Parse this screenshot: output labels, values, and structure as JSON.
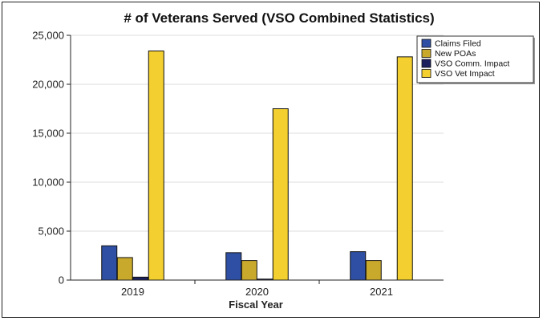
{
  "chart_data": {
    "type": "bar",
    "title": "# of Veterans Served (VSO Combined Statistics)",
    "xlabel": "Fiscal Year",
    "ylabel": "",
    "categories": [
      "2019",
      "2020",
      "2021"
    ],
    "ylim": [
      0,
      25000
    ],
    "yticks": [
      0,
      5000,
      10000,
      15000,
      20000,
      25000
    ],
    "ytick_labels": [
      "0",
      "5,000",
      "10,000",
      "15,000",
      "20,000",
      "25,000"
    ],
    "grid": true,
    "legend_position": "top-right",
    "series": [
      {
        "name": "Claims Filed",
        "color": "#2e4fa3",
        "values": [
          3500,
          2800,
          2900
        ]
      },
      {
        "name": "New POAs",
        "color": "#c9a92c",
        "values": [
          2300,
          2000,
          2000
        ]
      },
      {
        "name": "VSO Comm. Impact",
        "color": "#1c1f5e",
        "values": [
          300,
          100,
          0
        ]
      },
      {
        "name": "VSO Vet Impact",
        "color": "#f3cf2f",
        "values": [
          23400,
          17500,
          22800
        ]
      }
    ]
  }
}
